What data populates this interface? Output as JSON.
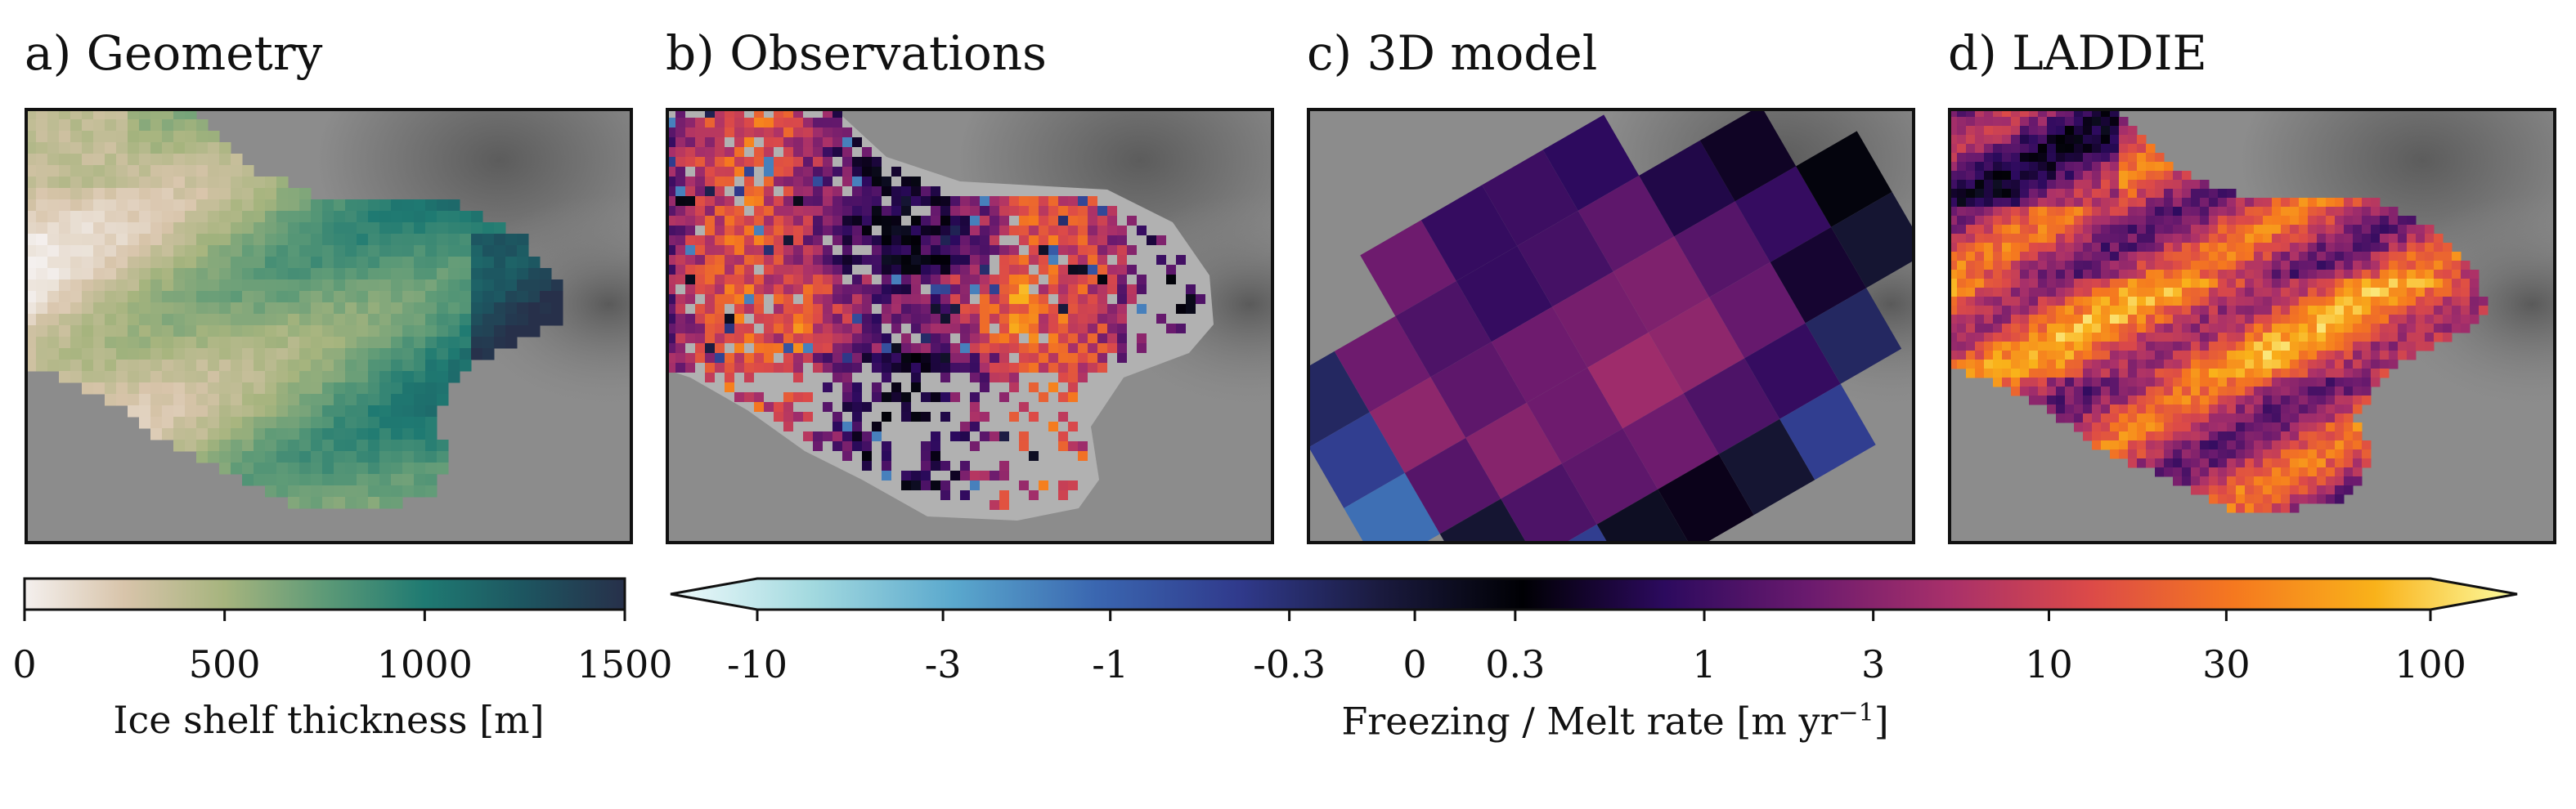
{
  "panels": [
    {
      "id": "a",
      "title": "a) Geometry",
      "colormap": "thickness"
    },
    {
      "id": "b",
      "title": "b) Observations",
      "colormap": "melt"
    },
    {
      "id": "c",
      "title": "c) 3D model",
      "colormap": "melt"
    },
    {
      "id": "d",
      "title": "d) LADDIE",
      "colormap": "melt"
    }
  ],
  "colorbar_thickness": {
    "label": "Ice shelf thickness [m]",
    "ticks": [
      "0",
      "500",
      "1000",
      "1500"
    ],
    "range": [
      0,
      1500
    ],
    "colors": [
      "#f4f0ee",
      "#d8c4aa",
      "#a6b47e",
      "#5d9a77",
      "#1f7a72",
      "#1d5560",
      "#27304a"
    ]
  },
  "colorbar_melt": {
    "label_text": "Freezing / Melt rate [m yr",
    "label_sup": "−1",
    "label_close": "]",
    "ticks": [
      "-10",
      "-3",
      "-1",
      "-0.3",
      "0",
      "0.3",
      "1",
      "3",
      "10",
      "30",
      "100"
    ],
    "extend": "both",
    "colors": [
      "#f1fbfc",
      "#a2d9df",
      "#5aa8cd",
      "#3a66b0",
      "#303a8c",
      "#1a1a3e",
      "#000004",
      "#2c0a5e",
      "#6a1a6e",
      "#a8306a",
      "#dc4a48",
      "#f5781f",
      "#f9b21a",
      "#fcfea4"
    ]
  },
  "chart_data": [
    {
      "type": "heatmap",
      "title": "a) Geometry",
      "quantity": "Ice shelf thickness",
      "unit": "m",
      "range": [
        0,
        1500
      ]
    },
    {
      "type": "heatmap",
      "title": "b) Observations",
      "quantity": "Freezing / Melt rate",
      "unit": "m yr−1"
    },
    {
      "type": "heatmap",
      "title": "c) 3D model",
      "quantity": "Freezing / Melt rate",
      "unit": "m yr−1"
    },
    {
      "type": "heatmap",
      "title": "d) LADDIE",
      "quantity": "Freezing / Melt rate",
      "unit": "m yr−1"
    }
  ]
}
